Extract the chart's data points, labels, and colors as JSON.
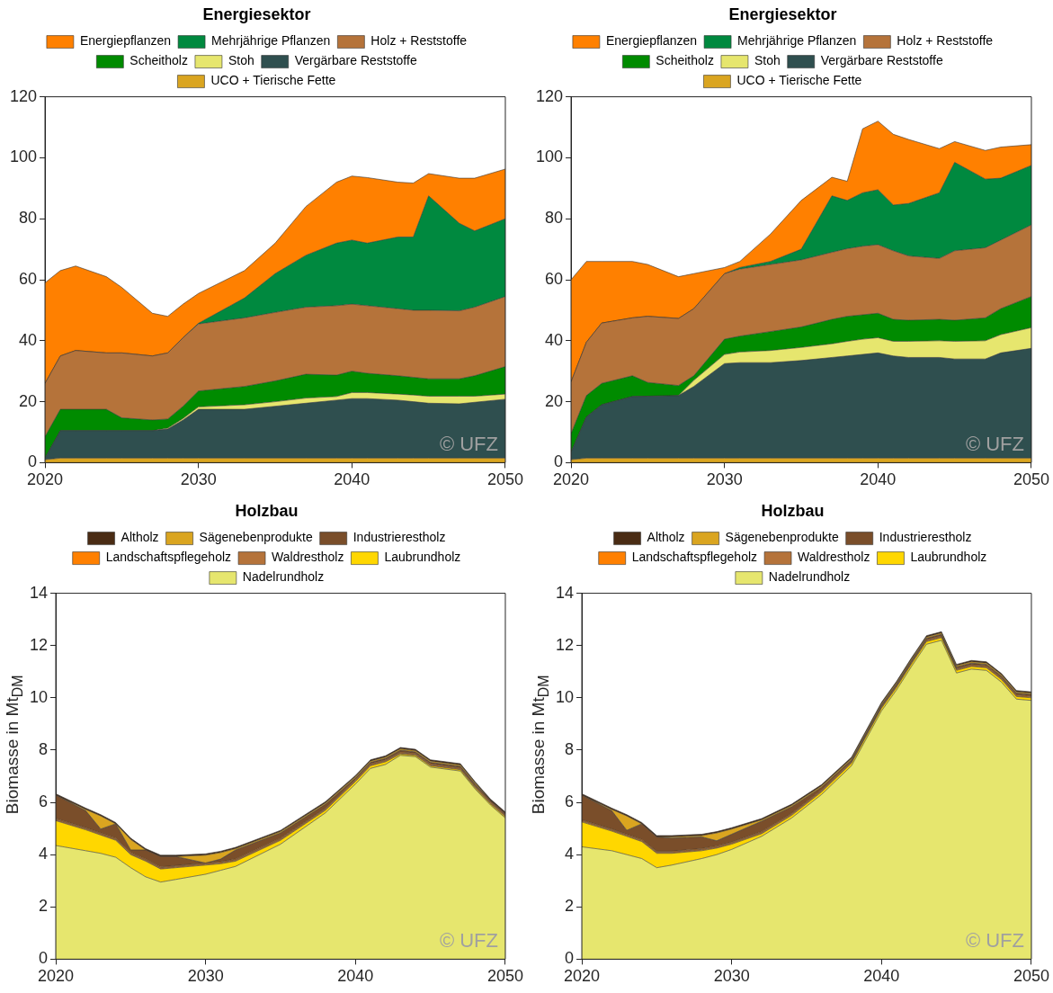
{
  "chart_data": [
    {
      "type": "area",
      "title": "Energiesektor",
      "stacked": true,
      "grid": false,
      "legend": "top",
      "annotations": [
        "© UFZ"
      ],
      "x": [
        2020,
        2021,
        2022,
        2024,
        2025,
        2027,
        2028,
        2029,
        2030,
        2033,
        2035,
        2037,
        2039,
        2040,
        2041,
        2043,
        2044,
        2045,
        2047,
        2048,
        2050
      ],
      "xlim": [
        2020,
        2050
      ],
      "xticks": [
        2020,
        2030,
        2040,
        2050
      ],
      "ylim": [
        0,
        120
      ],
      "yticks": [
        0,
        20,
        40,
        60,
        80,
        100,
        120
      ],
      "series": [
        {
          "name": "UCO + Tierische Fette",
          "color": "#daa520",
          "values": [
            1,
            1.5,
            1.5,
            1.5,
            1.5,
            1.5,
            1.5,
            1.5,
            1.5,
            1.5,
            1.5,
            1.5,
            1.5,
            1.5,
            1.5,
            1.5,
            1.5,
            1.5,
            1.5,
            1.5,
            1.5
          ]
        },
        {
          "name": "Vergärbare Reststoffe",
          "color": "#2f4f4f",
          "values": [
            0.5,
            9,
            9,
            9,
            9,
            9,
            9.5,
            12.5,
            16,
            16,
            17,
            18,
            19,
            19.5,
            19.5,
            19,
            18.5,
            18,
            17.8,
            18.3,
            19.3
          ]
        },
        {
          "name": "Stoh",
          "color": "#e6e66e",
          "values": [
            0,
            0,
            0,
            0,
            0,
            0,
            0.3,
            0.5,
            0.8,
            1.5,
            1.5,
            1.7,
            1.2,
            2,
            2,
            2,
            2.2,
            2.3,
            2.5,
            2,
            1.7
          ]
        },
        {
          "name": "Scheitholz",
          "color": "#008b00",
          "values": [
            7,
            7,
            7,
            7,
            4.2,
            3.5,
            3,
            4,
            5.2,
            6,
            6.8,
            7.8,
            7,
            7,
            6.3,
            6,
            5.8,
            5.7,
            5.7,
            6.7,
            9
          ]
        },
        {
          "name": "Holz + Reststoffe",
          "color": "#b5733a",
          "values": [
            17.5,
            17.5,
            19.3,
            18.5,
            21.3,
            21,
            21.7,
            22.5,
            22,
            22.5,
            22.5,
            22,
            22.8,
            22,
            22.2,
            22,
            22,
            22.5,
            22.3,
            22.5,
            23
          ]
        },
        {
          "name": "Mehrjährige Pflanzen",
          "color": "#00893f",
          "values": [
            0,
            0,
            0,
            0,
            0,
            0,
            0,
            0,
            0.2,
            6.5,
            12.7,
            17,
            20.5,
            21,
            20.5,
            23.5,
            24,
            37.5,
            28.7,
            25,
            25.5
          ]
        },
        {
          "name": "Energiepflanzen",
          "color": "#ff8000",
          "values": [
            33,
            28,
            27.7,
            25,
            21.5,
            14,
            12,
            11,
            9.8,
            9,
            10,
            16,
            20,
            21,
            21.5,
            18,
            17.7,
            7.3,
            14.8,
            17.3,
            16.3
          ]
        }
      ]
    },
    {
      "type": "area",
      "title": "Energiesektor",
      "stacked": true,
      "grid": false,
      "legend": "top",
      "annotations": [
        "© UFZ"
      ],
      "x": [
        2020,
        2021,
        2022,
        2024,
        2025,
        2027,
        2028,
        2030,
        2031,
        2033,
        2035,
        2037,
        2038,
        2039,
        2040,
        2041,
        2042,
        2044,
        2045,
        2047,
        2048,
        2050
      ],
      "xlim": [
        2020,
        2050
      ],
      "xticks": [
        2020,
        2030,
        2040,
        2050
      ],
      "ylim": [
        0,
        120
      ],
      "yticks": [
        0,
        20,
        40,
        60,
        80,
        100,
        120
      ],
      "series": [
        {
          "name": "UCO + Tierische Fette",
          "color": "#daa520",
          "values": [
            1,
            1.5,
            1.5,
            1.5,
            1.5,
            1.5,
            1.5,
            1.5,
            1.5,
            1.5,
            1.5,
            1.5,
            1.5,
            1.5,
            1.5,
            1.5,
            1.5,
            1.5,
            1.5,
            1.5,
            1.5,
            1.5
          ]
        },
        {
          "name": "Vergärbare Reststoffe",
          "color": "#2f4f4f",
          "values": [
            2.5,
            13.5,
            17.5,
            20.2,
            20.3,
            20.5,
            23.5,
            31,
            31.3,
            31.3,
            32,
            33,
            33.5,
            34,
            34.5,
            33.5,
            33,
            33,
            32.5,
            32.5,
            34.5,
            36
          ]
        },
        {
          "name": "Stoh",
          "color": "#e6e66e",
          "values": [
            0,
            0,
            0,
            0,
            0,
            0,
            2,
            3,
            3.5,
            4,
            4.3,
            4.5,
            4.8,
            5,
            5,
            4.8,
            5.3,
            5.5,
            5.8,
            6,
            6,
            6.8
          ]
        },
        {
          "name": "Scheitholz",
          "color": "#008b00",
          "values": [
            6,
            7,
            7,
            6.8,
            4.5,
            3.3,
            1.5,
            5,
            5.2,
            6.2,
            6.7,
            8,
            8.2,
            8,
            8,
            7.2,
            6.9,
            7,
            6.9,
            7.5,
            8.5,
            10.2
          ]
        },
        {
          "name": "Holz + Reststoffe",
          "color": "#b5733a",
          "values": [
            17,
            17.5,
            19.8,
            19,
            21.7,
            22,
            22,
            21.5,
            22,
            22,
            22,
            22,
            22.2,
            22.5,
            22.5,
            22.5,
            21.1,
            20,
            22.8,
            23,
            22.5,
            23.5
          ]
        },
        {
          "name": "Mehrjährige Pflanzen",
          "color": "#00893f",
          "values": [
            0,
            0,
            0,
            0,
            0,
            0,
            0,
            0,
            0.5,
            1,
            3.5,
            18.5,
            15.8,
            17.5,
            18,
            15,
            17.2,
            21.5,
            29,
            22.5,
            20.3,
            19.5
          ]
        },
        {
          "name": "Energiepflanzen",
          "color": "#ff8000",
          "values": [
            33.5,
            26.5,
            20.2,
            18.5,
            17,
            13.7,
            11.5,
            2,
            2,
            9,
            16,
            6.1,
            6.3,
            21,
            22.5,
            23.2,
            21,
            14.5,
            6.8,
            9.4,
            10.2,
            6.8
          ]
        }
      ]
    },
    {
      "type": "area",
      "title": "Holzbau",
      "ylabel": "Biomasse in Mt$_{DM}$",
      "stacked": true,
      "grid": false,
      "legend": "top",
      "annotations": [
        "© UFZ"
      ],
      "x": [
        2020,
        2022,
        2023,
        2024,
        2025,
        2026,
        2027,
        2028,
        2030,
        2031,
        2032,
        2035,
        2038,
        2040,
        2041,
        2042,
        2043,
        2044,
        2045,
        2047,
        2048,
        2049,
        2050
      ],
      "xlim": [
        2020,
        2050
      ],
      "xticks": [
        2020,
        2030,
        2040,
        2050
      ],
      "ylim": [
        0,
        14
      ],
      "yticks": [
        0,
        2,
        4,
        6,
        8,
        10,
        12,
        14
      ],
      "series": [
        {
          "name": "Nadelrundholz",
          "color": "#e6e66e",
          "values": [
            4.35,
            4.15,
            4.05,
            3.9,
            3.5,
            3.15,
            2.95,
            3.05,
            3.25,
            3.4,
            3.55,
            4.4,
            5.6,
            6.7,
            7.3,
            7.45,
            7.8,
            7.75,
            7.35,
            7.2,
            6.5,
            5.9,
            5.4
          ]
        },
        {
          "name": "Laubrundholz",
          "color": "#ffd700",
          "values": [
            0.95,
            0.8,
            0.7,
            0.65,
            0.5,
            0.6,
            0.5,
            0.45,
            0.35,
            0.25,
            0.2,
            0.15,
            0.1,
            0.1,
            0.1,
            0.1,
            0.05,
            0.05,
            0.05,
            0.05,
            0.05,
            0.05,
            0.05
          ]
        },
        {
          "name": "Waldrestholz",
          "color": "#b5733a",
          "values": [
            0.05,
            0.05,
            0.05,
            0.05,
            0.05,
            0.05,
            0.05,
            0.05,
            0.05,
            0.05,
            0.05,
            0.05,
            0.05,
            0.05,
            0.05,
            0.05,
            0.05,
            0.05,
            0.05,
            0.05,
            0.05,
            0.05,
            0.05
          ]
        },
        {
          "name": "Landschaftspflegeholz",
          "color": "#ff8000",
          "values": [
            0.03,
            0.03,
            0.03,
            0.03,
            0.03,
            0.03,
            0.03,
            0.03,
            0.03,
            0.03,
            0.03,
            0.03,
            0.03,
            0.03,
            0.03,
            0.03,
            0.03,
            0.03,
            0.03,
            0.03,
            0.03,
            0.03,
            0.03
          ]
        },
        {
          "name": "Industrierestholz",
          "color": "#7a4e2a",
          "values": [
            0.9,
            0.65,
            0.15,
            0.55,
            0.1,
            0.35,
            0.4,
            0.35,
            0,
            0.1,
            0.35,
            0.2,
            0.15,
            0.05,
            0.05,
            0.05,
            0.07,
            0.05,
            0.05,
            0.05,
            0.05,
            0.05,
            0.05
          ]
        },
        {
          "name": "Sägenebenprodukte",
          "color": "#daa520",
          "values": [
            0,
            0.05,
            0.5,
            0,
            0.4,
            0,
            0,
            0,
            0.3,
            0.25,
            0.05,
            0.05,
            0.05,
            0.05,
            0.05,
            0.05,
            0.05,
            0.05,
            0.05,
            0.05,
            0.05,
            0,
            0
          ]
        },
        {
          "name": "Altholz",
          "color": "#4a2c14",
          "values": [
            0.05,
            0.05,
            0.05,
            0.05,
            0.05,
            0.05,
            0.05,
            0.05,
            0.05,
            0.05,
            0.05,
            0.05,
            0.05,
            0.05,
            0.05,
            0.05,
            0.05,
            0.05,
            0.05,
            0.05,
            0.05,
            0.05,
            0.05
          ]
        }
      ]
    },
    {
      "type": "area",
      "title": "Holzbau",
      "ylabel": "Biomasse in Mt$_{DM}$",
      "stacked": true,
      "grid": false,
      "legend": "top",
      "annotations": [
        "© UFZ"
      ],
      "x": [
        2020,
        2022,
        2023,
        2024,
        2025,
        2026,
        2028,
        2029,
        2030,
        2032,
        2034,
        2036,
        2038,
        2040,
        2041,
        2042,
        2043,
        2044,
        2045,
        2046,
        2047,
        2048,
        2049,
        2050
      ],
      "xlim": [
        2020,
        2050
      ],
      "xticks": [
        2020,
        2030,
        2040,
        2050
      ],
      "ylim": [
        0,
        14
      ],
      "yticks": [
        0,
        2,
        4,
        6,
        8,
        10,
        12,
        14
      ],
      "series": [
        {
          "name": "Nadelrundholz",
          "color": "#e6e66e",
          "values": [
            4.3,
            4.15,
            4,
            3.85,
            3.5,
            3.6,
            3.85,
            4,
            4.2,
            4.7,
            5.4,
            6.3,
            7.4,
            9.5,
            10.3,
            11.2,
            12.05,
            12.2,
            10.95,
            11.1,
            11.05,
            10.6,
            9.95,
            9.9
          ]
        },
        {
          "name": "Laubrundholz",
          "color": "#ffd700",
          "values": [
            0.95,
            0.75,
            0.7,
            0.65,
            0.55,
            0.45,
            0.3,
            0.25,
            0.2,
            0.1,
            0.1,
            0.1,
            0.1,
            0.1,
            0.1,
            0.1,
            0.1,
            0.1,
            0.1,
            0.1,
            0.1,
            0.1,
            0.1,
            0.1
          ]
        },
        {
          "name": "Waldrestholz",
          "color": "#b5733a",
          "values": [
            0.05,
            0.05,
            0.05,
            0.05,
            0.05,
            0.05,
            0.05,
            0.05,
            0.05,
            0.05,
            0.05,
            0.05,
            0.05,
            0.05,
            0.05,
            0.05,
            0.05,
            0.05,
            0.05,
            0.05,
            0.05,
            0.05,
            0.05,
            0.05
          ]
        },
        {
          "name": "Landschaftspflegeholz",
          "color": "#ff8000",
          "values": [
            0.03,
            0.03,
            0.03,
            0.03,
            0.03,
            0.03,
            0.03,
            0.03,
            0.03,
            0.03,
            0.03,
            0.03,
            0.03,
            0.03,
            0.03,
            0.03,
            0.03,
            0.03,
            0.03,
            0.03,
            0.03,
            0.03,
            0.03,
            0.03
          ]
        },
        {
          "name": "Industrierestholz",
          "color": "#7a4e2a",
          "values": [
            0.95,
            0.7,
            0.15,
            0.6,
            0.55,
            0.5,
            0.45,
            0.2,
            0.3,
            0.4,
            0.25,
            0.1,
            0.05,
            0.05,
            0.05,
            0.05,
            0.05,
            0.05,
            0.05,
            0.05,
            0.05,
            0.05,
            0.05,
            0.05
          ]
        },
        {
          "name": "Sägenebenprodukte",
          "color": "#daa520",
          "values": [
            0,
            0.05,
            0.55,
            0,
            0,
            0.05,
            0.05,
            0.3,
            0.2,
            0.05,
            0.05,
            0.05,
            0.05,
            0.05,
            0.05,
            0.05,
            0.05,
            0.05,
            0.05,
            0.05,
            0.05,
            0.05,
            0.05,
            0.05
          ]
        },
        {
          "name": "Altholz",
          "color": "#4a2c14",
          "values": [
            0.05,
            0.05,
            0.05,
            0.05,
            0.05,
            0.05,
            0.05,
            0.05,
            0.05,
            0.05,
            0.05,
            0.05,
            0.05,
            0.05,
            0.05,
            0.05,
            0.05,
            0.05,
            0.05,
            0.05,
            0.05,
            0.05,
            0.05,
            0.05
          ]
        }
      ]
    }
  ]
}
